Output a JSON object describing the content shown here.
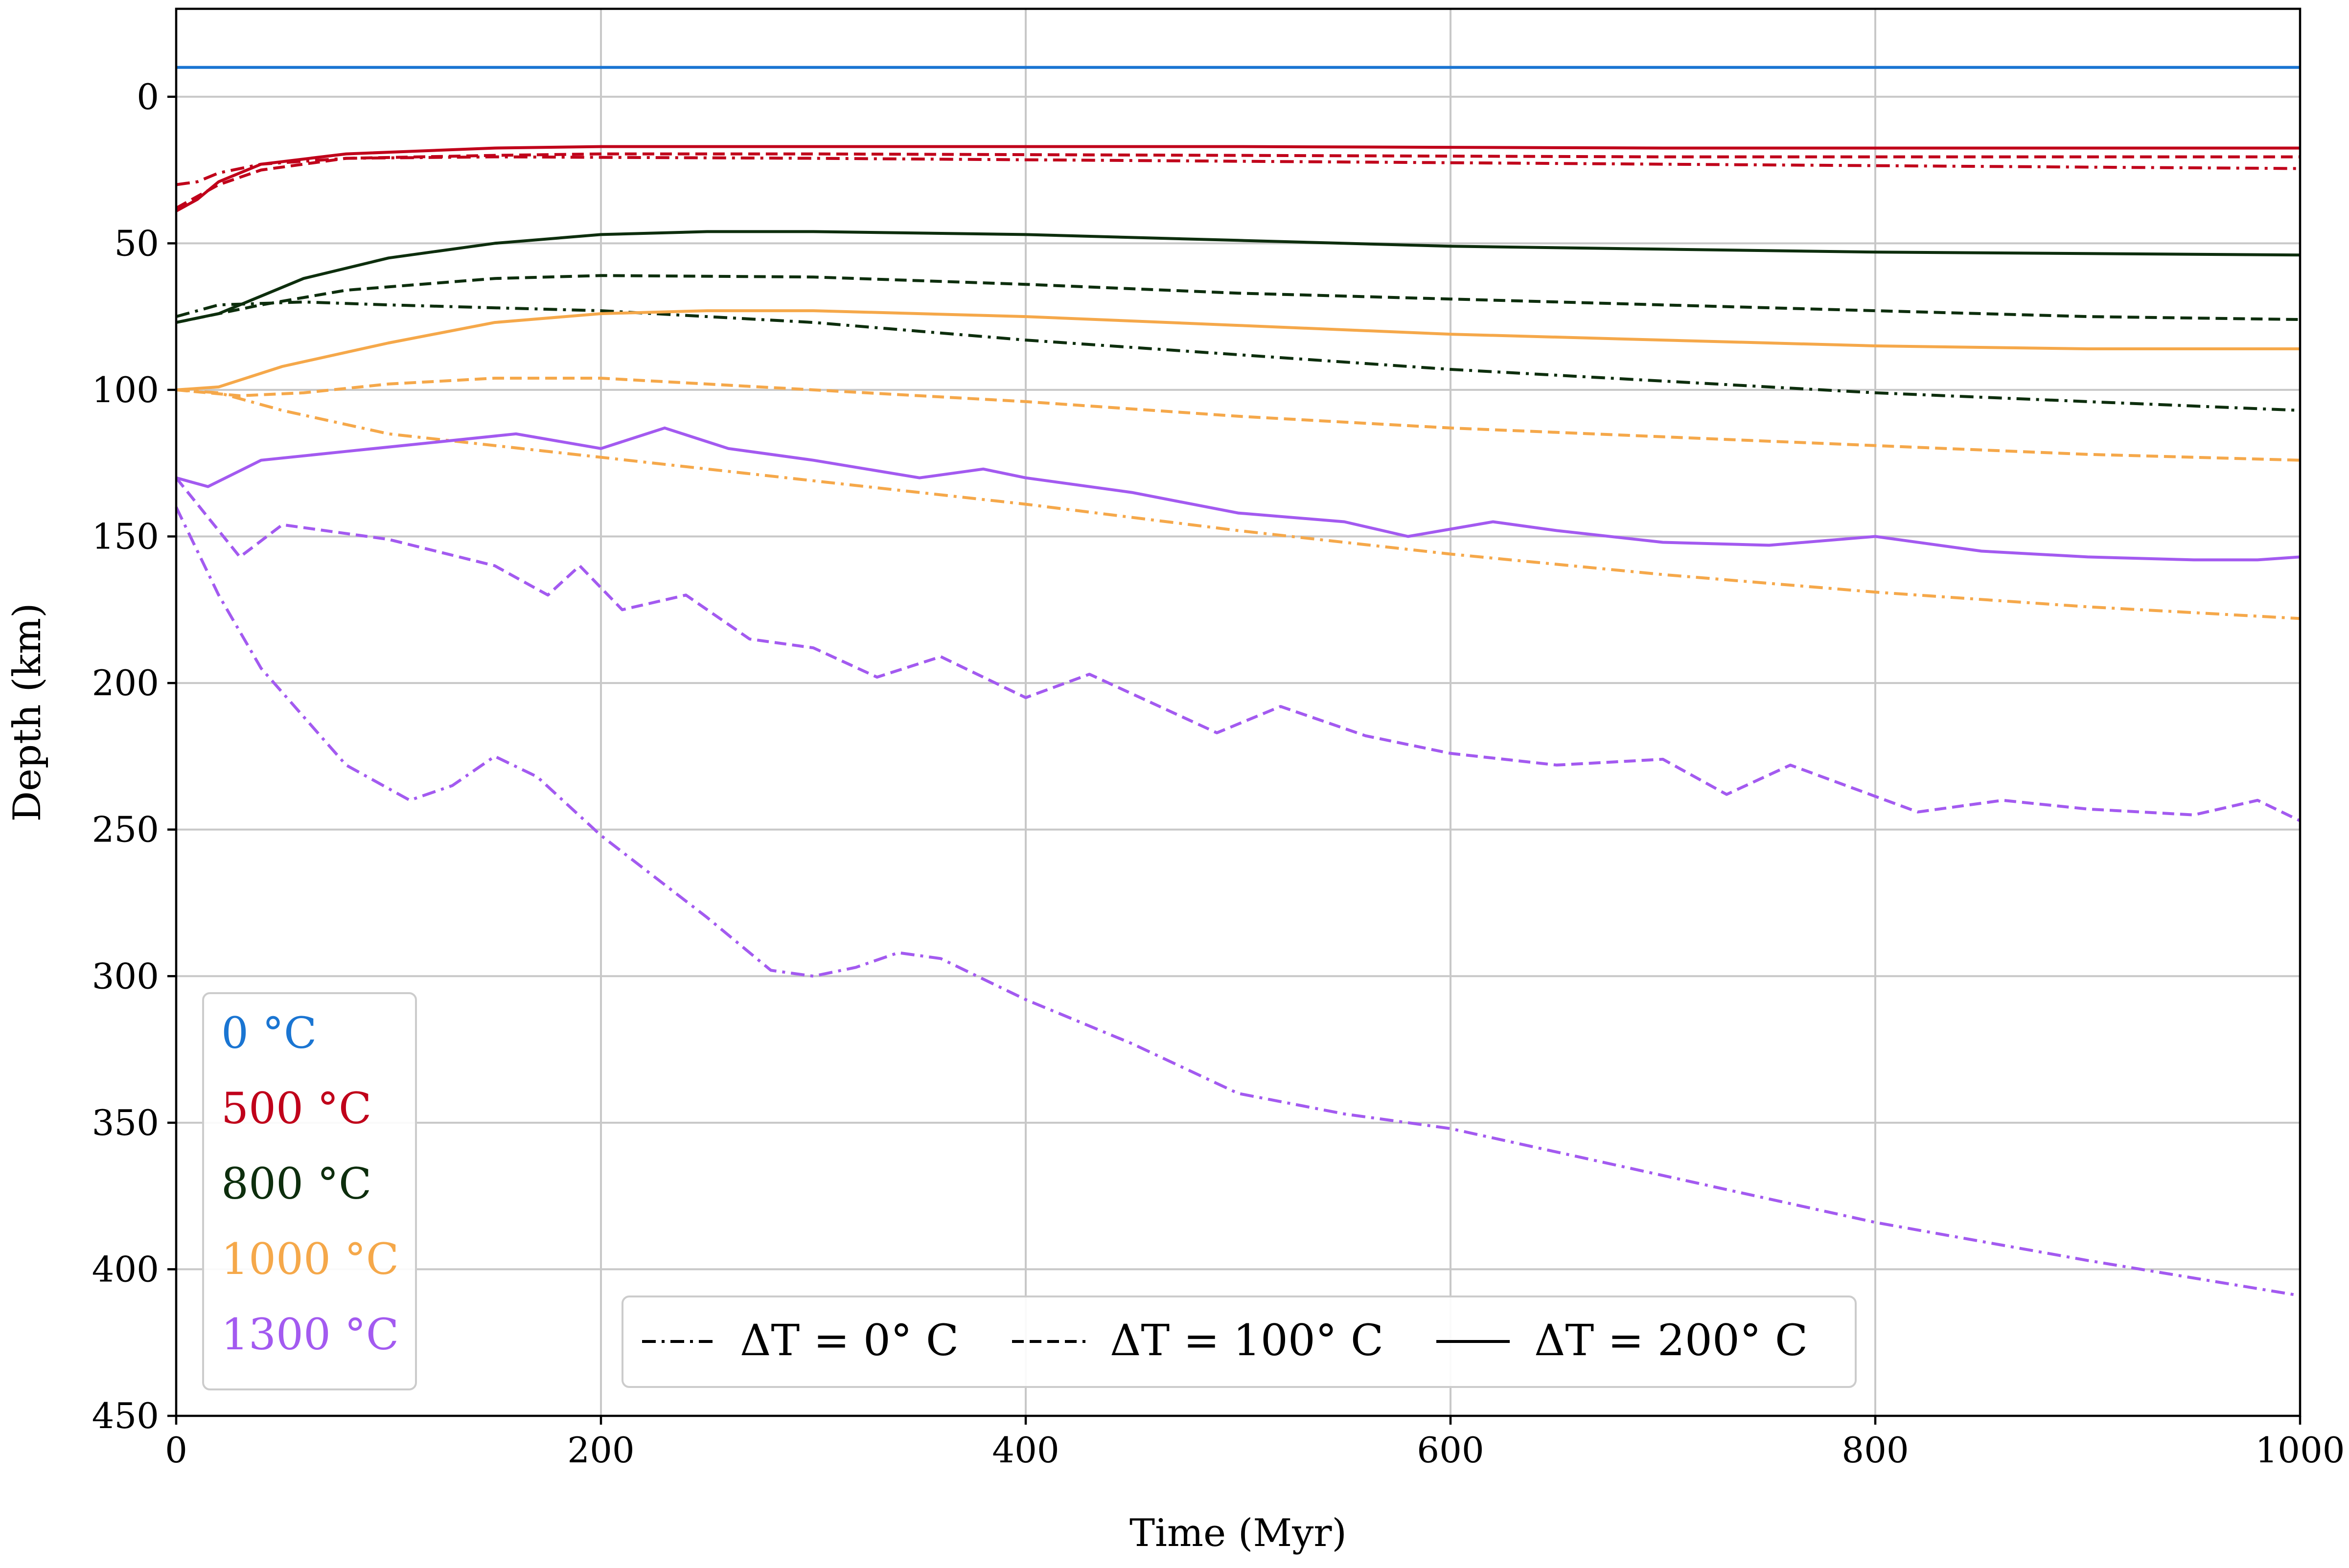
{
  "chart_data": {
    "type": "line",
    "xlabel": "Time (Myr)",
    "ylabel": "Depth (km)",
    "xlim": [
      0,
      1000
    ],
    "ylim": [
      450,
      -30
    ],
    "y_inverted": true,
    "xticks": [
      0,
      200,
      400,
      600,
      800,
      1000
    ],
    "yticks": [
      0,
      50,
      100,
      150,
      200,
      250,
      300,
      350,
      400,
      450
    ],
    "grid": true,
    "color_legend": {
      "placement": "lower-left",
      "entries": [
        {
          "label": "0 °C",
          "color": "#1a75d2"
        },
        {
          "label": "500 °C",
          "color": "#c0001a"
        },
        {
          "label": "800 °C",
          "color": "#0d2e0d"
        },
        {
          "label": "1000 °C",
          "color": "#f5a84a"
        },
        {
          "label": "1300 °C",
          "color": "#a35af0"
        }
      ]
    },
    "style_legend": {
      "placement": "lower-center",
      "entries": [
        {
          "label": "ΔT = 0° C",
          "dash": "dashdot"
        },
        {
          "label": "ΔT = 100° C",
          "dash": "dashed"
        },
        {
          "label": "ΔT = 200° C",
          "dash": "solid"
        }
      ]
    },
    "series": [
      {
        "temperature": "0 °C",
        "delta_t": "ΔT = 200° C",
        "color": "#1a75d2",
        "dash": "solid",
        "x": [
          0,
          1000
        ],
        "y": [
          -10,
          -10
        ]
      },
      {
        "temperature": "500 °C",
        "delta_t": "ΔT = 0° C",
        "color": "#c0001a",
        "dash": "dashdot",
        "x": [
          0,
          10,
          20,
          40,
          80,
          150,
          300,
          500,
          700,
          900,
          1000
        ],
        "y": [
          30,
          29,
          26,
          23,
          21,
          20.5,
          21,
          22,
          23,
          24,
          24.5
        ]
      },
      {
        "temperature": "500 °C",
        "delta_t": "ΔT = 100° C",
        "color": "#c0001a",
        "dash": "dashed",
        "x": [
          0,
          20,
          40,
          80,
          150,
          200,
          300,
          500,
          700,
          900,
          1000
        ],
        "y": [
          38,
          30,
          25,
          21,
          20,
          19.5,
          19.5,
          20,
          20.5,
          20.5,
          20.5
        ]
      },
      {
        "temperature": "500 °C",
        "delta_t": "ΔT = 200° C",
        "color": "#c0001a",
        "dash": "solid",
        "x": [
          0,
          10,
          20,
          40,
          80,
          150,
          200,
          300,
          500,
          700,
          900,
          1000
        ],
        "y": [
          39,
          35,
          29,
          23,
          19.5,
          17.5,
          17,
          17,
          17,
          17.5,
          17.5,
          17.5
        ]
      },
      {
        "temperature": "800 °C",
        "delta_t": "ΔT = 0° C",
        "color": "#0d2e0d",
        "dash": "dashdot",
        "x": [
          0,
          20,
          60,
          100,
          200,
          300,
          400,
          500,
          600,
          700,
          800,
          900,
          1000
        ],
        "y": [
          75,
          71,
          70,
          71,
          73,
          77,
          83,
          88,
          93,
          97,
          101,
          104,
          107
        ]
      },
      {
        "temperature": "800 °C",
        "delta_t": "ΔT = 100° C",
        "color": "#0d2e0d",
        "dash": "dashed",
        "x": [
          0,
          40,
          80,
          150,
          200,
          300,
          400,
          500,
          600,
          700,
          800,
          900,
          1000
        ],
        "y": [
          77,
          71,
          66,
          62,
          61,
          61.5,
          64,
          67,
          69,
          71,
          73,
          75,
          76
        ]
      },
      {
        "temperature": "800 °C",
        "delta_t": "ΔT = 200° C",
        "color": "#0d2e0d",
        "dash": "solid",
        "x": [
          0,
          20,
          40,
          60,
          100,
          150,
          200,
          250,
          300,
          400,
          500,
          600,
          700,
          800,
          900,
          1000
        ],
        "y": [
          77,
          74,
          68,
          62,
          55,
          50,
          47,
          46,
          46,
          47,
          49,
          51,
          52,
          53,
          53.5,
          54
        ]
      },
      {
        "temperature": "1000 °C",
        "delta_t": "ΔT = 0° C",
        "color": "#f5a84a",
        "dash": "dashdot",
        "x": [
          0,
          20,
          50,
          100,
          200,
          300,
          400,
          500,
          600,
          700,
          800,
          900,
          1000
        ],
        "y": [
          100,
          101,
          107,
          115,
          123,
          131,
          139,
          148,
          156,
          163,
          169,
          174,
          178
        ]
      },
      {
        "temperature": "1000 °C",
        "delta_t": "ΔT = 100° C",
        "color": "#f5a84a",
        "dash": "dashed",
        "x": [
          0,
          30,
          60,
          100,
          150,
          200,
          300,
          400,
          500,
          600,
          700,
          800,
          900,
          1000
        ],
        "y": [
          100,
          102,
          101,
          98,
          96,
          96,
          100,
          104,
          109,
          113,
          116,
          119,
          122,
          124
        ]
      },
      {
        "temperature": "1000 °C",
        "delta_t": "ΔT = 200° C",
        "color": "#f5a84a",
        "dash": "solid",
        "x": [
          0,
          20,
          50,
          100,
          150,
          200,
          250,
          300,
          400,
          500,
          600,
          700,
          800,
          900,
          1000
        ],
        "y": [
          100,
          99,
          92,
          84,
          77,
          74,
          73,
          73,
          75,
          78,
          81,
          83,
          85,
          86,
          86
        ]
      },
      {
        "temperature": "1300 °C",
        "delta_t": "ΔT = 0° C",
        "color": "#a35af0",
        "dash": "dashdot",
        "x": [
          0,
          20,
          40,
          80,
          110,
          130,
          150,
          170,
          200,
          250,
          280,
          300,
          320,
          340,
          360,
          400,
          450,
          500,
          550,
          600,
          700,
          800,
          900,
          1000
        ],
        "y": [
          140,
          170,
          195,
          228,
          240,
          235,
          225,
          232,
          252,
          280,
          298,
          300,
          297,
          292,
          294,
          308,
          323,
          340,
          347,
          352,
          368,
          384,
          397,
          409
        ]
      },
      {
        "temperature": "1300 °C",
        "delta_t": "ΔT = 100° C",
        "color": "#a35af0",
        "dash": "dashed",
        "x": [
          0,
          30,
          50,
          100,
          150,
          175,
          190,
          210,
          240,
          270,
          300,
          330,
          360,
          400,
          430,
          490,
          520,
          560,
          600,
          650,
          700,
          730,
          760,
          820,
          860,
          900,
          950,
          980,
          1000
        ],
        "y": [
          130,
          157,
          146,
          151,
          160,
          170,
          160,
          175,
          170,
          185,
          188,
          198,
          191,
          205,
          197,
          217,
          208,
          218,
          224,
          228,
          226,
          238,
          228,
          244,
          240,
          243,
          245,
          240,
          247
        ]
      },
      {
        "temperature": "1300 °C",
        "delta_t": "ΔT = 200° C",
        "color": "#a35af0",
        "dash": "solid",
        "x": [
          0,
          15,
          40,
          80,
          120,
          160,
          200,
          230,
          260,
          300,
          350,
          380,
          400,
          450,
          500,
          550,
          580,
          620,
          650,
          700,
          750,
          800,
          850,
          900,
          950,
          980,
          1000
        ],
        "y": [
          130,
          133,
          124,
          121,
          118,
          115,
          120,
          113,
          120,
          124,
          130,
          127,
          130,
          135,
          142,
          145,
          150,
          145,
          148,
          152,
          153,
          150,
          155,
          157,
          158,
          158,
          157
        ]
      }
    ]
  }
}
